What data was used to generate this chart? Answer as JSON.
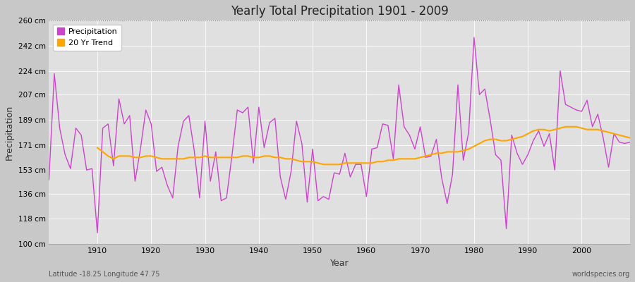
{
  "title": "Yearly Total Precipitation 1901 - 2009",
  "xlabel": "Year",
  "ylabel": "Precipitation",
  "lat_lon_label": "Latitude -18.25 Longitude 47.75",
  "source_label": "worldspecies.org",
  "ylim": [
    100,
    260
  ],
  "yticks": [
    100,
    118,
    136,
    153,
    171,
    189,
    207,
    224,
    242,
    260
  ],
  "ytick_labels": [
    "100 cm",
    "118 cm",
    "136 cm",
    "153 cm",
    "171 cm",
    "189 cm",
    "207 cm",
    "224 cm",
    "242 cm",
    "260 cm"
  ],
  "xticks": [
    1910,
    1920,
    1930,
    1940,
    1950,
    1960,
    1970,
    1980,
    1990,
    2000
  ],
  "xlim": [
    1901,
    2009
  ],
  "precip_color": "#cc44cc",
  "trend_color": "#ffa500",
  "fig_bg_color": "#c8c8c8",
  "plot_bg_color": "#e0e0e0",
  "grid_color": "#f8f8f8",
  "years": [
    1901,
    1902,
    1903,
    1904,
    1905,
    1906,
    1907,
    1908,
    1909,
    1910,
    1911,
    1912,
    1913,
    1914,
    1915,
    1916,
    1917,
    1918,
    1919,
    1920,
    1921,
    1922,
    1923,
    1924,
    1925,
    1926,
    1927,
    1928,
    1929,
    1930,
    1931,
    1932,
    1933,
    1934,
    1935,
    1936,
    1937,
    1938,
    1939,
    1940,
    1941,
    1942,
    1943,
    1944,
    1945,
    1946,
    1947,
    1948,
    1949,
    1950,
    1951,
    1952,
    1953,
    1954,
    1955,
    1956,
    1957,
    1958,
    1959,
    1960,
    1961,
    1962,
    1963,
    1964,
    1965,
    1966,
    1967,
    1968,
    1969,
    1970,
    1971,
    1972,
    1973,
    1974,
    1975,
    1976,
    1977,
    1978,
    1979,
    1980,
    1981,
    1982,
    1983,
    1984,
    1985,
    1986,
    1987,
    1988,
    1989,
    1990,
    1991,
    1992,
    1993,
    1994,
    1995,
    1996,
    1997,
    1998,
    1999,
    2000,
    2001,
    2002,
    2003,
    2004,
    2005,
    2006,
    2007,
    2008,
    2009
  ],
  "precip": [
    146,
    222,
    183,
    164,
    154,
    183,
    178,
    153,
    154,
    108,
    183,
    186,
    156,
    204,
    186,
    192,
    145,
    168,
    196,
    186,
    152,
    155,
    142,
    133,
    170,
    188,
    192,
    167,
    133,
    188,
    145,
    166,
    131,
    133,
    163,
    196,
    194,
    198,
    158,
    198,
    169,
    187,
    190,
    148,
    132,
    152,
    188,
    172,
    130,
    168,
    131,
    134,
    132,
    151,
    150,
    165,
    148,
    157,
    157,
    134,
    168,
    169,
    186,
    185,
    161,
    214,
    184,
    178,
    168,
    184,
    162,
    163,
    175,
    147,
    129,
    150,
    214,
    160,
    180,
    248,
    207,
    211,
    189,
    164,
    160,
    111,
    178,
    165,
    157,
    164,
    174,
    181,
    170,
    179,
    153,
    224,
    200,
    198,
    196,
    195,
    203,
    184,
    193,
    176,
    155,
    179,
    173,
    172,
    173
  ],
  "trend_years": [
    1910,
    1911,
    1912,
    1913,
    1914,
    1915,
    1916,
    1917,
    1918,
    1919,
    1920,
    1921,
    1922,
    1923,
    1924,
    1925,
    1926,
    1927,
    1928,
    1929,
    1930,
    1931,
    1932,
    1933,
    1934,
    1935,
    1936,
    1937,
    1938,
    1939,
    1940,
    1941,
    1942,
    1943,
    1944,
    1945,
    1946,
    1947,
    1948,
    1949,
    1950,
    1951,
    1952,
    1953,
    1954,
    1955,
    1956,
    1957,
    1958,
    1959,
    1960,
    1961,
    1962,
    1963,
    1964,
    1965,
    1966,
    1967,
    1968,
    1969,
    1970,
    1971,
    1972,
    1973,
    1974,
    1975,
    1976,
    1977,
    1978,
    1979,
    1980,
    1981,
    1982,
    1983,
    1984,
    1985,
    1986,
    1987,
    1988,
    1989,
    1990,
    1991,
    1992,
    1993,
    1994,
    1995,
    1996,
    1997,
    1998,
    1999,
    2000,
    2001,
    2002,
    2003,
    2004,
    2005,
    2006,
    2007,
    2008,
    2009
  ],
  "trend": [
    169,
    166,
    163,
    161,
    163,
    163,
    163,
    162,
    162,
    163,
    163,
    162,
    161,
    161,
    161,
    161,
    161,
    162,
    162,
    162,
    163,
    162,
    162,
    162,
    162,
    162,
    162,
    163,
    163,
    162,
    162,
    163,
    163,
    162,
    162,
    161,
    161,
    160,
    159,
    159,
    159,
    158,
    157,
    157,
    157,
    157,
    158,
    158,
    158,
    158,
    158,
    158,
    159,
    159,
    160,
    160,
    161,
    161,
    161,
    161,
    162,
    163,
    164,
    165,
    165,
    166,
    166,
    166,
    167,
    168,
    170,
    172,
    174,
    175,
    175,
    174,
    174,
    175,
    176,
    177,
    179,
    181,
    182,
    182,
    181,
    182,
    183,
    184,
    184,
    184,
    183,
    182,
    182,
    182,
    181,
    180,
    179,
    178,
    177,
    176
  ]
}
